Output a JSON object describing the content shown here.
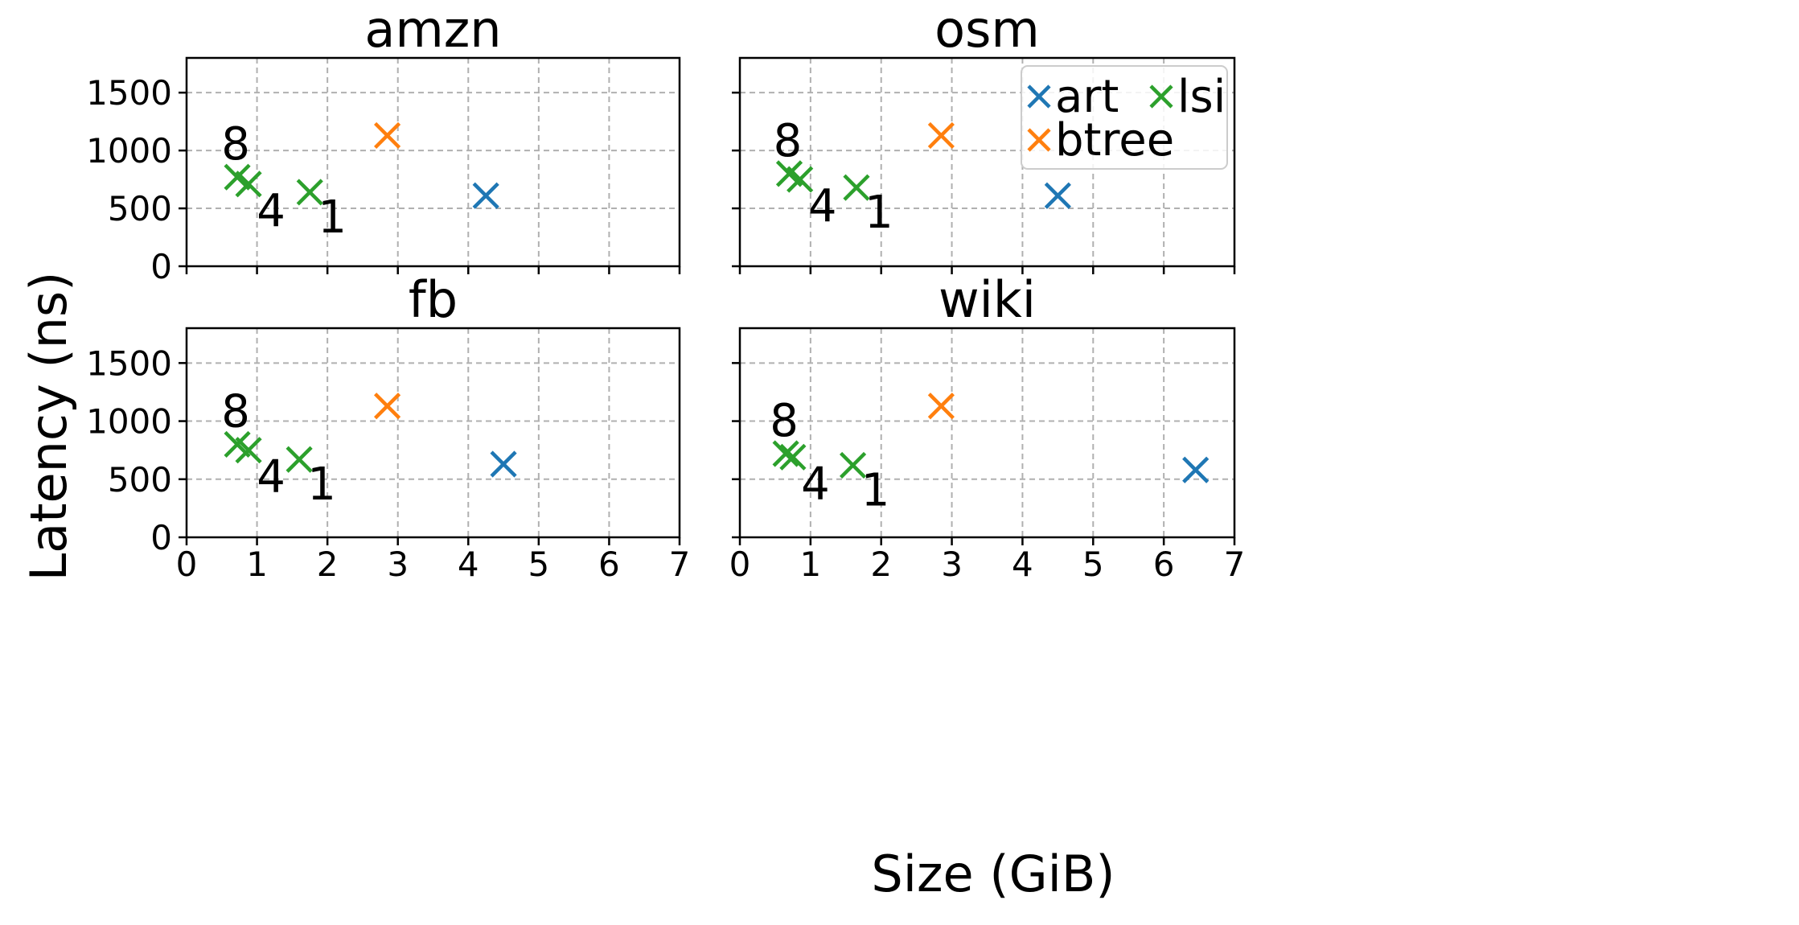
{
  "chart_data": [
    {
      "type": "scatter",
      "title": "amzn",
      "xlim": [
        0,
        7
      ],
      "ylim": [
        0,
        1800
      ],
      "xticks": [
        0,
        1,
        2,
        3,
        4,
        5,
        6,
        7
      ],
      "yticks": [
        0,
        500,
        1000,
        1500
      ],
      "grid": true,
      "series": [
        {
          "name": "art",
          "color": "#1f77b4",
          "points": [
            {
              "x": 4.25,
              "y": 610
            }
          ]
        },
        {
          "name": "btree",
          "color": "#ff7f0e",
          "points": [
            {
              "x": 2.85,
              "y": 1130
            }
          ]
        },
        {
          "name": "lsi",
          "color": "#2ca02c",
          "points": [
            {
              "x": 0.72,
              "y": 770,
              "label": "8"
            },
            {
              "x": 0.88,
              "y": 710,
              "label": "4"
            },
            {
              "x": 1.75,
              "y": 640,
              "label": "1"
            }
          ]
        }
      ]
    },
    {
      "type": "scatter",
      "title": "osm",
      "xlim": [
        0,
        7
      ],
      "ylim": [
        0,
        1800
      ],
      "xticks": [
        0,
        1,
        2,
        3,
        4,
        5,
        6,
        7
      ],
      "yticks": [
        0,
        500,
        1000,
        1500
      ],
      "grid": true,
      "legend": "top-right",
      "series": [
        {
          "name": "art",
          "color": "#1f77b4",
          "points": [
            {
              "x": 4.5,
              "y": 610
            }
          ]
        },
        {
          "name": "btree",
          "color": "#ff7f0e",
          "points": [
            {
              "x": 2.85,
              "y": 1130
            }
          ]
        },
        {
          "name": "lsi",
          "color": "#2ca02c",
          "points": [
            {
              "x": 0.7,
              "y": 800,
              "label": "8"
            },
            {
              "x": 0.85,
              "y": 750,
              "label": "4"
            },
            {
              "x": 1.65,
              "y": 680,
              "label": "1"
            }
          ]
        }
      ]
    },
    {
      "type": "scatter",
      "title": "fb",
      "xlim": [
        0,
        7
      ],
      "ylim": [
        0,
        1800
      ],
      "xticks": [
        0,
        1,
        2,
        3,
        4,
        5,
        6,
        7
      ],
      "yticks": [
        0,
        500,
        1000,
        1500
      ],
      "grid": true,
      "series": [
        {
          "name": "art",
          "color": "#1f77b4",
          "points": [
            {
              "x": 4.5,
              "y": 630
            }
          ]
        },
        {
          "name": "btree",
          "color": "#ff7f0e",
          "points": [
            {
              "x": 2.85,
              "y": 1130
            }
          ]
        },
        {
          "name": "lsi",
          "color": "#2ca02c",
          "points": [
            {
              "x": 0.72,
              "y": 800,
              "label": "8"
            },
            {
              "x": 0.88,
              "y": 750,
              "label": "4"
            },
            {
              "x": 1.6,
              "y": 670,
              "label": "1"
            }
          ]
        }
      ]
    },
    {
      "type": "scatter",
      "title": "wiki",
      "xlim": [
        0,
        7
      ],
      "ylim": [
        0,
        1800
      ],
      "xticks": [
        0,
        1,
        2,
        3,
        4,
        5,
        6,
        7
      ],
      "yticks": [
        0,
        500,
        1000,
        1500
      ],
      "grid": true,
      "series": [
        {
          "name": "art",
          "color": "#1f77b4",
          "points": [
            {
              "x": 6.45,
              "y": 580
            }
          ]
        },
        {
          "name": "btree",
          "color": "#ff7f0e",
          "points": [
            {
              "x": 2.85,
              "y": 1130
            }
          ]
        },
        {
          "name": "lsi",
          "color": "#2ca02c",
          "points": [
            {
              "x": 0.65,
              "y": 720,
              "label": "8"
            },
            {
              "x": 0.75,
              "y": 690,
              "label": "4"
            },
            {
              "x": 1.6,
              "y": 620,
              "label": "1"
            }
          ]
        }
      ]
    }
  ],
  "xlabel": "Size (GiB)",
  "ylabel": "Latency (ns)"
}
